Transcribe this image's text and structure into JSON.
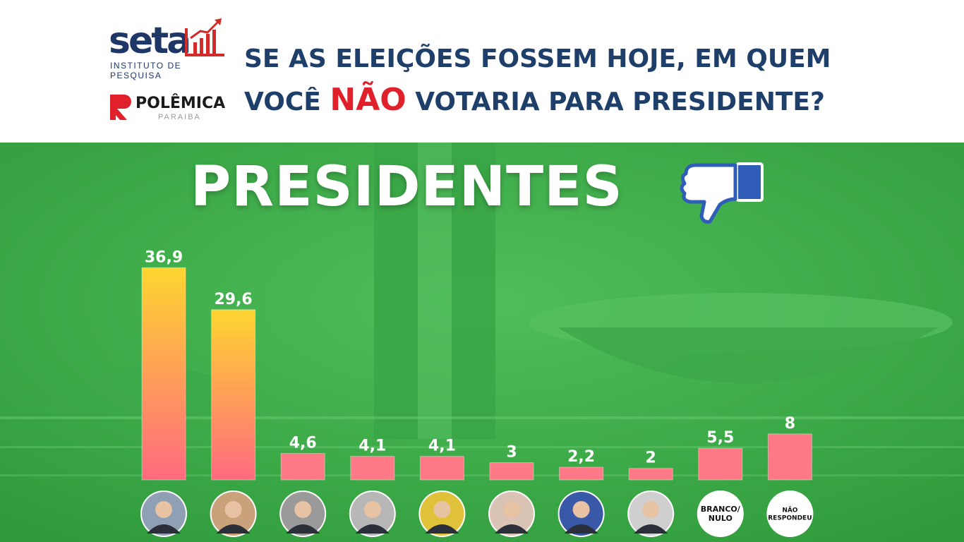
{
  "header": {
    "brand_seta": "seta",
    "brand_seta_sub": "INSTITUTO DE PESQUISA",
    "brand_polemica": "POLÊMICA",
    "brand_polemica_sub": "PARAIBA",
    "question_line1": "SE AS ELEIÇÕES FOSSEM HOJE, EM QUEM",
    "question_line2_pre": "VOCÊ ",
    "question_line2_highlight": "NÃO",
    "question_line2_post": " VOTARIA PARA PRESIDENTE?"
  },
  "title_banner": "PRESIDENTES",
  "icons": {
    "thumb": "thumbs-down-icon"
  },
  "colors": {
    "background_green": "#43b14d",
    "header_blue": "#1f3f6b",
    "highlight_red": "#e0202a",
    "bar_top_yellow": "#fdd530",
    "bar_bottom_pink": "#ff6a7f",
    "small_bar": "#ff7a86"
  },
  "chart_data": {
    "type": "bar",
    "categories": [
      "",
      "",
      "",
      "",
      "",
      "",
      "",
      "",
      "BRANCO/ NULO",
      "NÃO RESPONDEU"
    ],
    "values": [
      36.9,
      29.6,
      4.6,
      4.1,
      4.1,
      3,
      2.2,
      2,
      5.5,
      8
    ],
    "value_labels": [
      "36,9",
      "29,6",
      "4,6",
      "4,1",
      "4,1",
      "3",
      "2,2",
      "2",
      "5,5",
      "8"
    ],
    "category_markers": [
      "candidate-photo",
      "candidate-photo",
      "candidate-photo",
      "candidate-photo",
      "candidate-photo",
      "candidate-photo",
      "candidate-photo",
      "candidate-photo",
      "text-circle",
      "text-circle"
    ],
    "title": "PRESIDENTES",
    "xlabel": "",
    "ylabel": "",
    "ylim": [
      0,
      40
    ],
    "grid": false,
    "legend": "none"
  }
}
